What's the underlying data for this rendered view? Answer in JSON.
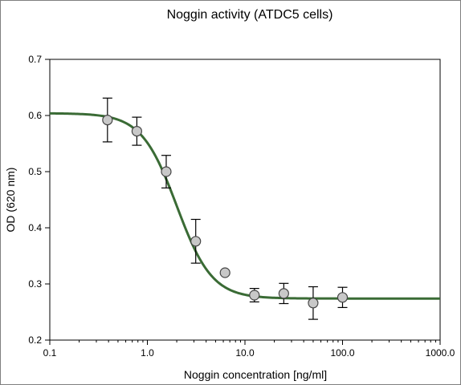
{
  "chart_data": {
    "type": "scatter",
    "title": "Noggin activity (ATDC5 cells)",
    "xlabel": "Noggin concentration [ng/ml]",
    "ylabel": "OD (620 nm)",
    "x_scale": "log",
    "xlim": [
      0.1,
      1000
    ],
    "ylim": [
      0.2,
      0.7
    ],
    "x_ticks": [
      0.1,
      1,
      10,
      100,
      1000
    ],
    "x_tick_labels": [
      "0.1",
      "1.0",
      "10.0",
      "100.0",
      "1000.0"
    ],
    "y_ticks": [
      0.2,
      0.3,
      0.4,
      0.5,
      0.6,
      0.7
    ],
    "y_tick_labels": [
      "0.2",
      "0.3",
      "0.4",
      "0.5",
      "0.6",
      "0.7"
    ],
    "grid": false,
    "points": [
      {
        "x": 0.39,
        "y": 0.592,
        "err": 0.039
      },
      {
        "x": 0.78,
        "y": 0.572,
        "err": 0.025
      },
      {
        "x": 1.56,
        "y": 0.5,
        "err": 0.029
      },
      {
        "x": 3.13,
        "y": 0.376,
        "err": 0.039
      },
      {
        "x": 6.25,
        "y": 0.32,
        "err": 0
      },
      {
        "x": 12.5,
        "y": 0.28,
        "err": 0.012
      },
      {
        "x": 25.0,
        "y": 0.283,
        "err": 0.018
      },
      {
        "x": 50.0,
        "y": 0.266,
        "err": 0.029
      },
      {
        "x": 100.0,
        "y": 0.276,
        "err": 0.018
      }
    ],
    "fit": {
      "top": 0.604,
      "bottom": 0.274,
      "ec50": 2.0,
      "hill": 2.4
    },
    "colors": {
      "fit_line": "#3a6b35",
      "marker_fill": "#c8c8c8",
      "marker_edge": "#444444",
      "axis": "#000000"
    }
  }
}
